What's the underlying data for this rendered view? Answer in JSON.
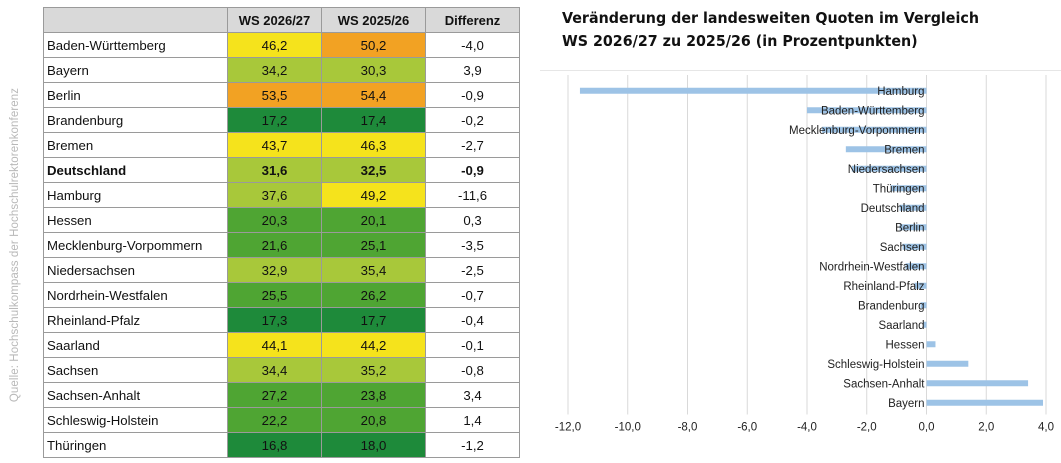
{
  "source_note": "Quelle: Hochschulkompass der Hochschulrektorenkonferenz",
  "table": {
    "headers": [
      "",
      "WS 2026/27",
      "WS 2025/26",
      "Differenz"
    ],
    "rows": [
      {
        "land": "Baden-Württemberg",
        "ws2026": "46,2",
        "ws2025": "50,2",
        "diff": "-4,0",
        "color2026": "#f5e31c",
        "color2025": "#f2a223",
        "bold": false
      },
      {
        "land": "Bayern",
        "ws2026": "34,2",
        "ws2025": "30,3",
        "diff": "3,9",
        "color2026": "#a8c83a",
        "color2025": "#a8c83a",
        "bold": false
      },
      {
        "land": "Berlin",
        "ws2026": "53,5",
        "ws2025": "54,4",
        "diff": "-0,9",
        "color2026": "#f2a223",
        "color2025": "#f2a223",
        "bold": false
      },
      {
        "land": "Brandenburg",
        "ws2026": "17,2",
        "ws2025": "17,4",
        "diff": "-0,2",
        "color2026": "#1e8a3a",
        "color2025": "#1e8a3a",
        "bold": false
      },
      {
        "land": "Bremen",
        "ws2026": "43,7",
        "ws2025": "46,3",
        "diff": "-2,7",
        "color2026": "#f5e31c",
        "color2025": "#f5e31c",
        "bold": false
      },
      {
        "land": "Deutschland",
        "ws2026": "31,6",
        "ws2025": "32,5",
        "diff": "-0,9",
        "color2026": "#a8c83a",
        "color2025": "#a8c83a",
        "bold": true
      },
      {
        "land": "Hamburg",
        "ws2026": "37,6",
        "ws2025": "49,2",
        "diff": "-11,6",
        "color2026": "#a8c83a",
        "color2025": "#f5e31c",
        "bold": false
      },
      {
        "land": "Hessen",
        "ws2026": "20,3",
        "ws2025": "20,1",
        "diff": "0,3",
        "color2026": "#4fa533",
        "color2025": "#4fa533",
        "bold": false
      },
      {
        "land": "Mecklenburg-Vorpommern",
        "ws2026": "21,6",
        "ws2025": "25,1",
        "diff": "-3,5",
        "color2026": "#4fa533",
        "color2025": "#4fa533",
        "bold": false
      },
      {
        "land": "Niedersachsen",
        "ws2026": "32,9",
        "ws2025": "35,4",
        "diff": "-2,5",
        "color2026": "#a8c83a",
        "color2025": "#a8c83a",
        "bold": false
      },
      {
        "land": "Nordrhein-Westfalen",
        "ws2026": "25,5",
        "ws2025": "26,2",
        "diff": "-0,7",
        "color2026": "#4fa533",
        "color2025": "#4fa533",
        "bold": false
      },
      {
        "land": "Rheinland-Pfalz",
        "ws2026": "17,3",
        "ws2025": "17,7",
        "diff": "-0,4",
        "color2026": "#1e8a3a",
        "color2025": "#1e8a3a",
        "bold": false
      },
      {
        "land": "Saarland",
        "ws2026": "44,1",
        "ws2025": "44,2",
        "diff": "-0,1",
        "color2026": "#f5e31c",
        "color2025": "#f5e31c",
        "bold": false
      },
      {
        "land": "Sachsen",
        "ws2026": "34,4",
        "ws2025": "35,2",
        "diff": "-0,8",
        "color2026": "#a8c83a",
        "color2025": "#a8c83a",
        "bold": false
      },
      {
        "land": "Sachsen-Anhalt",
        "ws2026": "27,2",
        "ws2025": "23,8",
        "diff": "3,4",
        "color2026": "#4fa533",
        "color2025": "#4fa533",
        "bold": false
      },
      {
        "land": "Schleswig-Holstein",
        "ws2026": "22,2",
        "ws2025": "20,8",
        "diff": "1,4",
        "color2026": "#4fa533",
        "color2025": "#4fa533",
        "bold": false
      },
      {
        "land": "Thüringen",
        "ws2026": "16,8",
        "ws2025": "18,0",
        "diff": "-1,2",
        "color2026": "#1e8a3a",
        "color2025": "#1e8a3a",
        "bold": false
      }
    ]
  },
  "chart_data": {
    "type": "bar",
    "orientation": "horizontal",
    "title_line1": "Veränderung der landesweiten Quoten im Vergleich",
    "title_line2": "WS 2026/27 zu 2025/26 (in Prozentpunkten)",
    "categories": [
      "Hamburg",
      "Baden-Württemberg",
      "Mecklenburg-Vorpommern",
      "Bremen",
      "Niedersachsen",
      "Thüringen",
      "Deutschland",
      "Berlin",
      "Sachsen",
      "Nordrhein-Westfalen",
      "Rheinland-Pfalz",
      "Brandenburg",
      "Saarland",
      "Hessen",
      "Schleswig-Holstein",
      "Sachsen-Anhalt",
      "Bayern"
    ],
    "values": [
      -11.6,
      -4.0,
      -3.5,
      -2.7,
      -2.5,
      -1.2,
      -0.9,
      -0.9,
      -0.8,
      -0.7,
      -0.4,
      -0.2,
      -0.1,
      0.3,
      1.4,
      3.4,
      3.9
    ],
    "xlim": [
      -12.0,
      4.0
    ],
    "xticks": [
      -12.0,
      -10.0,
      -8.0,
      -6.0,
      -4.0,
      -2.0,
      0.0,
      2.0,
      4.0
    ],
    "xtick_labels": [
      "-12,0",
      "-10,0",
      "-8,0",
      "-6,0",
      "-4,0",
      "-2,0",
      "0,0",
      "2,0",
      "4,0"
    ],
    "grid": "vertical",
    "bar_color": "#9dc3e6",
    "grid_color": "#d9d9d9"
  }
}
